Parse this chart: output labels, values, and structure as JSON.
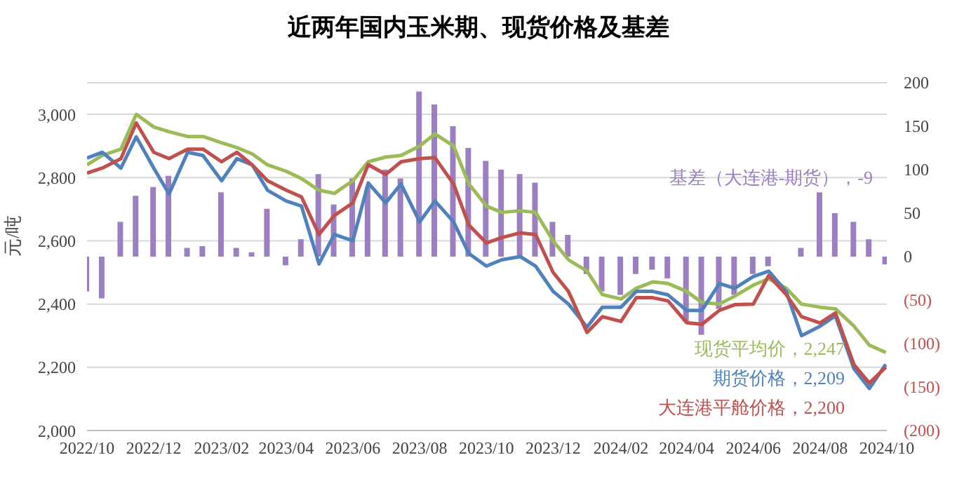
{
  "chart_data": {
    "type": "line",
    "title": "近两年国内玉米期、现货价格及基差",
    "ylabel": "元/吨",
    "x": [
      "2022-10-01",
      "2022-10-15",
      "2022-11-01",
      "2022-11-15",
      "2022-12-01",
      "2022-12-15",
      "2023-01-01",
      "2023-01-15",
      "2023-02-01",
      "2023-02-15",
      "2023-03-01",
      "2023-03-15",
      "2023-04-01",
      "2023-04-15",
      "2023-05-01",
      "2023-05-15",
      "2023-06-01",
      "2023-06-15",
      "2023-07-01",
      "2023-07-15",
      "2023-08-01",
      "2023-08-15",
      "2023-09-01",
      "2023-09-15",
      "2023-10-01",
      "2023-10-15",
      "2023-11-01",
      "2023-11-15",
      "2023-12-01",
      "2023-12-15",
      "2024-01-01",
      "2024-01-15",
      "2024-02-01",
      "2024-02-15",
      "2024-03-01",
      "2024-03-15",
      "2024-04-01",
      "2024-04-15",
      "2024-05-01",
      "2024-05-15",
      "2024-06-01",
      "2024-06-15",
      "2024-07-01",
      "2024-07-15",
      "2024-08-01",
      "2024-08-15",
      "2024-09-01",
      "2024-09-15",
      "2024-09-30"
    ],
    "series": [
      {
        "type": "bar",
        "axis": "y2",
        "color": "#9b7fc0",
        "values": [
          -40,
          -48,
          40,
          70,
          80,
          93,
          10,
          12,
          74,
          10,
          5,
          55,
          -10,
          20,
          95,
          60,
          90,
          80,
          100,
          90,
          190,
          175,
          150,
          125,
          110,
          100,
          95,
          85,
          40,
          25,
          -20,
          -40,
          -44,
          -20,
          -15,
          -25,
          -75,
          -90,
          -60,
          -44,
          -20,
          -11,
          0,
          10,
          74,
          50,
          40,
          20,
          -9
        ]
      },
      {
        "color": "#9bbb59",
        "values": [
          2840,
          2870,
          2890,
          3000,
          2960,
          2945,
          2930,
          2930,
          2910,
          2895,
          2875,
          2840,
          2820,
          2797,
          2760,
          2750,
          2790,
          2850,
          2865,
          2870,
          2900,
          2938,
          2900,
          2780,
          2710,
          2690,
          2695,
          2690,
          2600,
          2540,
          2504,
          2430,
          2416,
          2450,
          2470,
          2465,
          2440,
          2405,
          2400,
          2425,
          2460,
          2480,
          2450,
          2400,
          2390,
          2385,
          2330,
          2270,
          2247
        ]
      },
      {
        "color": "#4f81bd",
        "values": [
          2862,
          2880,
          2830,
          2929,
          2830,
          2748,
          2880,
          2870,
          2790,
          2860,
          2840,
          2760,
          2726,
          2710,
          2527,
          2620,
          2600,
          2783,
          2720,
          2780,
          2660,
          2726,
          2660,
          2560,
          2520,
          2540,
          2550,
          2520,
          2440,
          2400,
          2327,
          2390,
          2390,
          2440,
          2440,
          2429,
          2380,
          2380,
          2465,
          2450,
          2487,
          2504,
          2440,
          2300,
          2330,
          2363,
          2195,
          2133,
          2209
        ]
      },
      {
        "color": "#c0504d",
        "values": [
          2814,
          2830,
          2860,
          2973,
          2880,
          2860,
          2890,
          2890,
          2850,
          2880,
          2840,
          2790,
          2760,
          2739,
          2620,
          2680,
          2720,
          2841,
          2810,
          2850,
          2860,
          2863,
          2780,
          2650,
          2593,
          2610,
          2625,
          2620,
          2500,
          2440,
          2310,
          2360,
          2345,
          2420,
          2420,
          2410,
          2341,
          2336,
          2380,
          2398,
          2400,
          2490,
          2430,
          2360,
          2340,
          2372,
          2208,
          2150,
          2200
        ]
      }
    ],
    "annotations": [
      "基差（大连港-期货），-9",
      "现货平均价，2,247",
      "期货价格，2,209",
      "大连港平舱价格，2,200"
    ],
    "xlim": [
      "2022-10-01",
      "2024-10-01"
    ],
    "xticks": [
      {
        "value": "2022-10-01",
        "label": "2022/10"
      },
      {
        "value": "2022-12-01",
        "label": "2022/12"
      },
      {
        "value": "2023-02-01",
        "label": "2023/02"
      },
      {
        "value": "2023-04-01",
        "label": "2023/04"
      },
      {
        "value": "2023-06-01",
        "label": "2023/06"
      },
      {
        "value": "2023-08-01",
        "label": "2023/08"
      },
      {
        "value": "2023-10-01",
        "label": "2023/10"
      },
      {
        "value": "2023-12-01",
        "label": "2023/12"
      },
      {
        "value": "2024-02-01",
        "label": "2024/02"
      },
      {
        "value": "2024-04-01",
        "label": "2024/04"
      },
      {
        "value": "2024-06-01",
        "label": "2024/06"
      },
      {
        "value": "2024-08-01",
        "label": "2024/08"
      },
      {
        "value": "2024-10-01",
        "label": "2024/10"
      }
    ],
    "ylim": [
      2000,
      3100
    ],
    "yticks": [
      {
        "value": 2000,
        "label": "2,000"
      },
      {
        "value": 2200,
        "label": "2,200"
      },
      {
        "value": 2400,
        "label": "2,400"
      },
      {
        "value": 2600,
        "label": "2,600"
      },
      {
        "value": 2800,
        "label": "2,800"
      },
      {
        "value": 3000,
        "label": "3,000"
      }
    ],
    "y2lim": [
      -200,
      200
    ],
    "y2ticks": [
      {
        "value": -200,
        "label": "(200)"
      },
      {
        "value": -150,
        "label": "(150)"
      },
      {
        "value": -100,
        "label": "(100)"
      },
      {
        "value": -50,
        "label": "(50)"
      },
      0,
      50,
      100,
      150,
      200
    ],
    "grid": "y",
    "legend": false,
    "marker": "none",
    "line_style": "solid"
  }
}
